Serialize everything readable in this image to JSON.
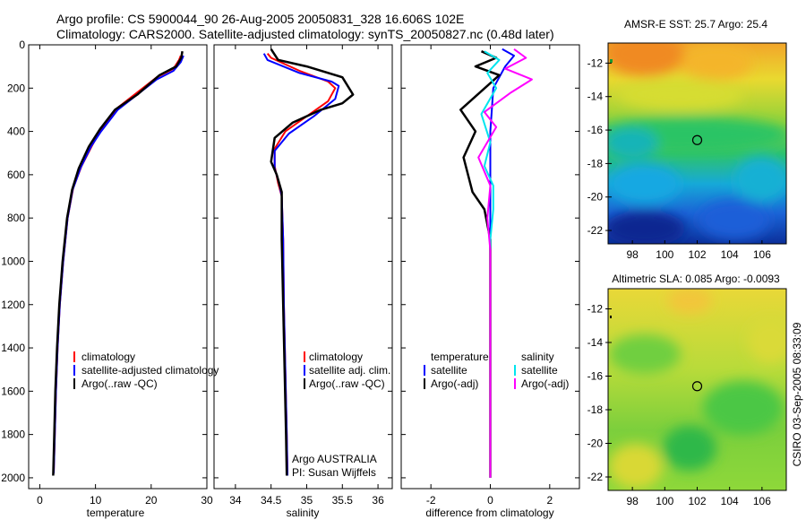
{
  "header": {
    "title1": "Argo profile: CS 5900044_90 26-Aug-2005 20050831_328 16.606S 102E",
    "title2": "Climatology: CARS2000. Satellite-adjusted climatology: synTS_20050827.nc (0.48d later)"
  },
  "side_label": "CSIRO 03-Sep-2005 08:33:09",
  "depth_ticks": [
    0,
    200,
    400,
    600,
    800,
    1000,
    1200,
    1400,
    1600,
    1800,
    2000
  ],
  "colors": {
    "red": "#ff0000",
    "blue": "#0000ff",
    "black": "#000000",
    "cyan": "#00e5ee",
    "magenta": "#ff00ff"
  },
  "chart_data": [
    {
      "id": "temperature",
      "type": "line",
      "xlabel": "temperature",
      "ylabel": "",
      "xlim": [
        -2,
        30
      ],
      "ylim": [
        0,
        2050
      ],
      "xticks": [
        0,
        10,
        20,
        30
      ],
      "legend": [
        "climatology",
        "satellite-adjusted climatology",
        "Argo(..raw -QC)"
      ],
      "series": [
        {
          "name": "climatology",
          "color": "red",
          "points": [
            [
              25.3,
              50
            ],
            [
              25,
              70
            ],
            [
              24,
              110
            ],
            [
              21,
              150
            ],
            [
              18,
              210
            ],
            [
              14,
              290
            ],
            [
              11,
              390
            ],
            [
              9.5,
              460
            ],
            [
              7.5,
              560
            ],
            [
              6,
              660
            ],
            [
              5,
              800
            ],
            [
              4.2,
              1000
            ],
            [
              3.6,
              1200
            ],
            [
              3.2,
              1400
            ],
            [
              2.9,
              1600
            ],
            [
              2.7,
              1800
            ],
            [
              2.5,
              1980
            ]
          ]
        },
        {
          "name": "satellite-adjusted climatology",
          "color": "blue",
          "points": [
            [
              25.8,
              50
            ],
            [
              25.3,
              80
            ],
            [
              24,
              120
            ],
            [
              21,
              160
            ],
            [
              18,
              220
            ],
            [
              14,
              300
            ],
            [
              11,
              400
            ],
            [
              9.2,
              470
            ],
            [
              7.3,
              570
            ],
            [
              5.9,
              670
            ],
            [
              5,
              800
            ],
            [
              4.2,
              1000
            ],
            [
              3.6,
              1200
            ],
            [
              3.2,
              1400
            ],
            [
              2.9,
              1600
            ],
            [
              2.7,
              1800
            ],
            [
              2.5,
              1980
            ]
          ]
        },
        {
          "name": "Argo(..raw -QC)",
          "color": "black",
          "points": [
            [
              25.6,
              30
            ],
            [
              25.4,
              60
            ],
            [
              24.5,
              100
            ],
            [
              21.5,
              140
            ],
            [
              17.5,
              230
            ],
            [
              13.5,
              300
            ],
            [
              10.8,
              390
            ],
            [
              8.8,
              470
            ],
            [
              7,
              570
            ],
            [
              5.8,
              670
            ],
            [
              4.9,
              800
            ],
            [
              4.1,
              1000
            ],
            [
              3.5,
              1200
            ],
            [
              3.1,
              1400
            ],
            [
              2.8,
              1600
            ],
            [
              2.6,
              1800
            ],
            [
              2.4,
              1990
            ]
          ]
        }
      ]
    },
    {
      "id": "salinity",
      "type": "line",
      "xlabel": "salinity",
      "ylabel": "",
      "xlim": [
        33.7,
        36.2
      ],
      "ylim": [
        0,
        2050
      ],
      "xticks": [
        34,
        34.5,
        35,
        35.5,
        36
      ],
      "legend": [
        "climatology",
        "satellite adj. clim.",
        "Argo(..raw -QC)"
      ],
      "annotation": [
        "Argo AUSTRALIA",
        "PI: Susan Wijffels"
      ],
      "series": [
        {
          "name": "climatology",
          "color": "red",
          "points": [
            [
              34.45,
              40
            ],
            [
              34.5,
              60
            ],
            [
              34.9,
              120
            ],
            [
              35.3,
              170
            ],
            [
              35.4,
              200
            ],
            [
              35.3,
              260
            ],
            [
              35,
              330
            ],
            [
              34.7,
              400
            ],
            [
              34.55,
              480
            ],
            [
              34.55,
              560
            ],
            [
              34.6,
              640
            ],
            [
              34.65,
              700
            ],
            [
              34.67,
              900
            ],
            [
              34.68,
              1200
            ],
            [
              34.7,
              1500
            ],
            [
              34.72,
              1800
            ],
            [
              34.73,
              1980
            ]
          ]
        },
        {
          "name": "satellite adj. clim.",
          "color": "blue",
          "points": [
            [
              34.4,
              40
            ],
            [
              34.45,
              70
            ],
            [
              34.9,
              130
            ],
            [
              35.35,
              170
            ],
            [
              35.45,
              190
            ],
            [
              35.4,
              250
            ],
            [
              35.1,
              330
            ],
            [
              34.75,
              410
            ],
            [
              34.55,
              490
            ],
            [
              34.55,
              570
            ],
            [
              34.62,
              650
            ],
            [
              34.65,
              700
            ],
            [
              34.67,
              900
            ],
            [
              34.68,
              1200
            ],
            [
              34.7,
              1500
            ],
            [
              34.72,
              1800
            ],
            [
              34.73,
              1990
            ]
          ]
        },
        {
          "name": "Argo(..raw -QC)",
          "color": "black",
          "points": [
            [
              34.5,
              20
            ],
            [
              34.6,
              70
            ],
            [
              35,
              100
            ],
            [
              35.5,
              150
            ],
            [
              35.65,
              230
            ],
            [
              35.5,
              270
            ],
            [
              35.2,
              300
            ],
            [
              34.8,
              360
            ],
            [
              34.55,
              430
            ],
            [
              34.5,
              540
            ],
            [
              34.58,
              600
            ],
            [
              34.65,
              680
            ],
            [
              34.65,
              900
            ],
            [
              34.67,
              1200
            ],
            [
              34.69,
              1500
            ],
            [
              34.71,
              1800
            ],
            [
              34.72,
              1990
            ]
          ]
        }
      ]
    },
    {
      "id": "difference",
      "type": "line",
      "xlabel": "difference from climatology",
      "ylabel": "",
      "xlim": [
        -3,
        3
      ],
      "ylim": [
        0,
        2050
      ],
      "xticks": [
        -2,
        0,
        2
      ],
      "legend_left": {
        "title": "temperature",
        "entries": [
          "satellite",
          "Argo(-adj)"
        ]
      },
      "legend_right": {
        "title": "salinity",
        "entries": [
          "satellite",
          "Argo(-adj)"
        ]
      },
      "series": [
        {
          "name": "temperature satellite",
          "color": "blue",
          "points": [
            [
              0.4,
              20
            ],
            [
              0.8,
              50
            ],
            [
              0.5,
              100
            ],
            [
              0.3,
              150
            ],
            [
              0.1,
              200
            ],
            [
              0.05,
              300
            ],
            [
              0,
              400
            ],
            [
              0,
              2000
            ]
          ]
        },
        {
          "name": "temperature Argo(-adj)",
          "color": "black",
          "points": [
            [
              -0.3,
              30
            ],
            [
              0.2,
              60
            ],
            [
              -0.5,
              100
            ],
            [
              0.3,
              140
            ],
            [
              -1.0,
              300
            ],
            [
              -0.5,
              400
            ],
            [
              -0.9,
              520
            ],
            [
              -0.6,
              680
            ],
            [
              -0.2,
              760
            ],
            [
              0,
              900
            ],
            [
              0,
              2000
            ]
          ]
        },
        {
          "name": "salinity satellite",
          "color": "cyan",
          "points": [
            [
              -0.2,
              30
            ],
            [
              0.3,
              70
            ],
            [
              -0.1,
              130
            ],
            [
              0.2,
              200
            ],
            [
              -0.3,
              320
            ],
            [
              0,
              450
            ],
            [
              -0.2,
              560
            ],
            [
              0.1,
              650
            ],
            [
              0.1,
              760
            ],
            [
              0,
              900
            ],
            [
              0,
              2000
            ]
          ]
        },
        {
          "name": "salinity Argo(-adj)",
          "color": "magenta",
          "points": [
            [
              0.8,
              20
            ],
            [
              1.2,
              60
            ],
            [
              0.5,
              110
            ],
            [
              1.4,
              160
            ],
            [
              0.7,
              220
            ],
            [
              -0.2,
              310
            ],
            [
              0.2,
              380
            ],
            [
              -0.4,
              520
            ],
            [
              0,
              650
            ],
            [
              -0.1,
              800
            ],
            [
              0,
              950
            ],
            [
              0,
              2000
            ]
          ]
        }
      ]
    },
    {
      "id": "sst_map",
      "type": "heatmap",
      "title": "AMSR-E SST: 25.7 Argo: 25.4",
      "xlim": [
        96.5,
        107.5
      ],
      "ylim": [
        -22.8,
        -10.8
      ],
      "xticks": [
        98,
        100,
        102,
        104,
        106
      ],
      "yticks": [
        -12,
        -14,
        -16,
        -18,
        -20,
        -22
      ],
      "marker": [
        102,
        -16.6
      ]
    },
    {
      "id": "sla_map",
      "type": "heatmap",
      "title": "Altimetric SLA: 0.085 Argo: -0.0093",
      "xlim": [
        96.5,
        107.5
      ],
      "ylim": [
        -22.8,
        -10.8
      ],
      "xticks": [
        98,
        100,
        102,
        104,
        106
      ],
      "yticks": [
        -12,
        -14,
        -16,
        -18,
        -20,
        -22
      ],
      "marker": [
        102,
        -16.6
      ]
    }
  ]
}
